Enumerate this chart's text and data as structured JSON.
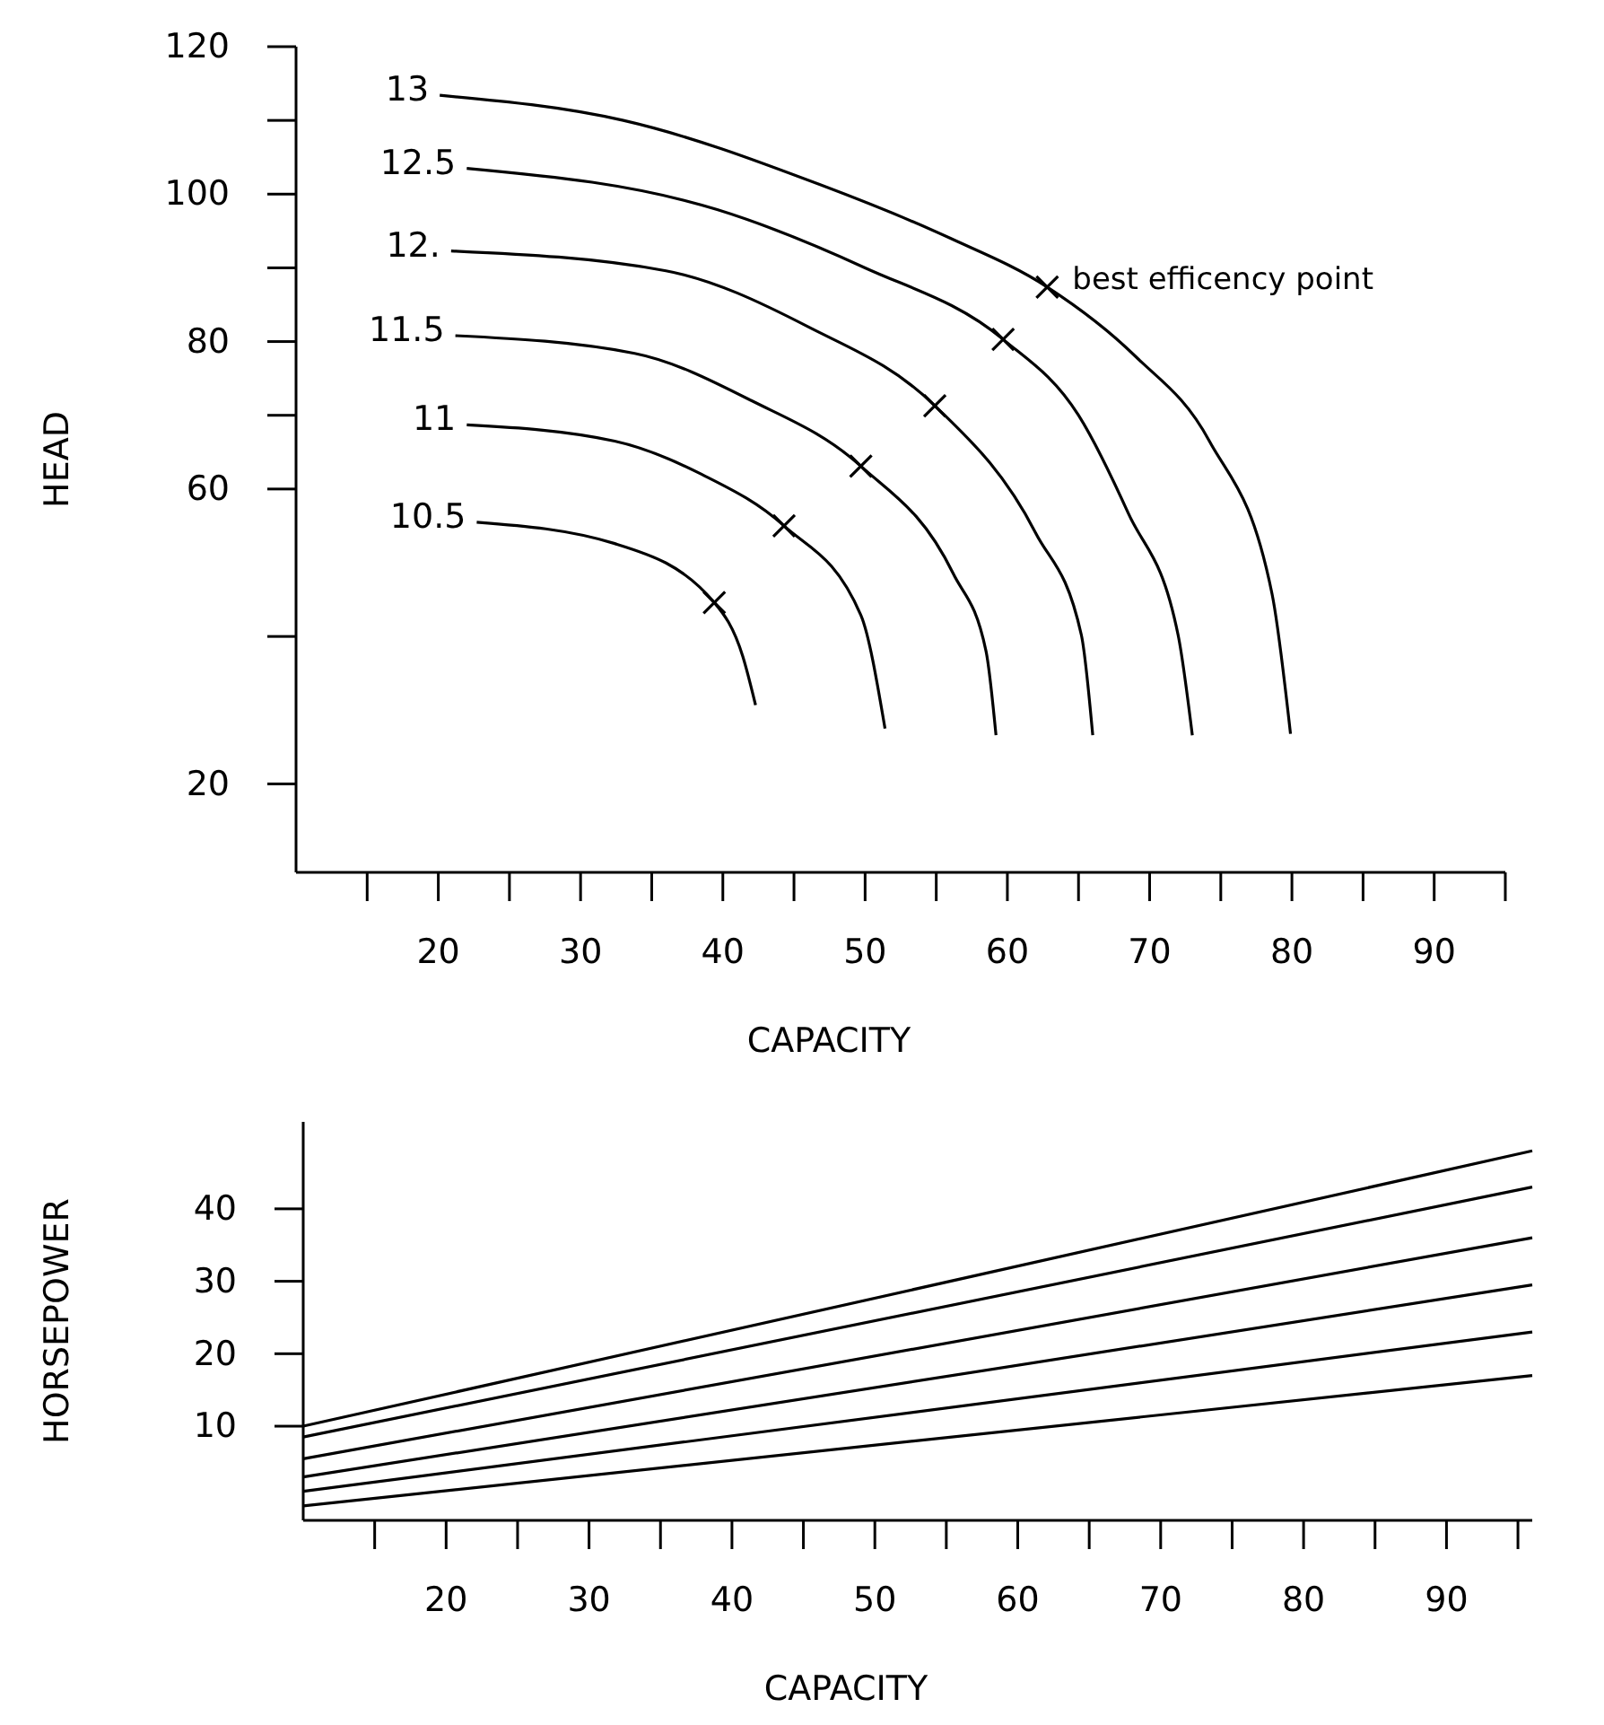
{
  "chart_data": [
    {
      "type": "line",
      "xlabel": "CAPACITY",
      "ylabel": "HEAD",
      "xlim": [
        10,
        95
      ],
      "ylim": [
        8,
        120
      ],
      "xticks": [
        {
          "value": 15,
          "label": null
        },
        20,
        {
          "value": 25,
          "label": null
        },
        30,
        {
          "value": 35,
          "label": null
        },
        40,
        {
          "value": 45,
          "label": null
        },
        50,
        {
          "value": 55,
          "label": null
        },
        60,
        {
          "value": 65,
          "label": null
        },
        70,
        {
          "value": 75,
          "label": null
        },
        80,
        {
          "value": 85,
          "label": null
        },
        90,
        {
          "value": 95,
          "label": null
        }
      ],
      "yticks": [
        120,
        {
          "value": 110,
          "label": null
        },
        100,
        {
          "value": 90,
          "label": null
        },
        80,
        {
          "value": 70,
          "label": null
        },
        60,
        {
          "value": 40,
          "label": null
        },
        20
      ],
      "grid": false,
      "line_style": "solid",
      "marker": "none",
      "series": [
        {
          "name": "13",
          "color": "#000000",
          "x": [
            20.1,
            33,
            46.8,
            56,
            62.8,
            69,
            74.2,
            78.6,
            79.9
          ],
          "values": [
            113.4,
            110,
            101.3,
            94,
            87.4,
            78,
            66.5,
            45.8,
            26.8
          ]
        },
        {
          "name": "12.5",
          "color": "#000000",
          "x": [
            22,
            39.6,
            50,
            59.7,
            65,
            68.5,
            72,
            73
          ],
          "values": [
            103.5,
            97.9,
            90,
            80.3,
            70,
            56.7,
            40.2,
            26.6
          ]
        },
        {
          "name": "12.",
          "color": "#000000",
          "x": [
            20.9,
            36,
            46,
            54.9,
            62,
            65.2,
            66
          ],
          "values": [
            92.3,
            89.6,
            82,
            71.3,
            54,
            40.2,
            26.6
          ]
        },
        {
          "name": "11.5",
          "color": "#000000",
          "x": [
            21.2,
            33.8,
            42,
            49.7,
            56.2,
            58.5,
            59.2
          ],
          "values": [
            80.8,
            78.4,
            72,
            63.1,
            48.5,
            38,
            26.6
          ]
        },
        {
          "name": "11",
          "color": "#000000",
          "x": [
            22,
            32.4,
            38.5,
            44.3,
            49.7,
            51.4
          ],
          "values": [
            68.7,
            66.5,
            62,
            55,
            42.9,
            27.5
          ]
        },
        {
          "name": "10.5",
          "color": "#000000",
          "x": [
            22.7,
            32.4,
            39.4,
            41.4,
            42.3
          ],
          "values": [
            55.5,
            52.6,
            44.6,
            37.3,
            30.7
          ]
        },
        {
          "type": "scatter",
          "marker": "cross",
          "color": "#000000",
          "x": [
            39.4,
            44.3,
            49.7,
            54.9,
            59.7,
            62.8
          ],
          "values": [
            44.6,
            55,
            63.1,
            71.3,
            80.3,
            87.4
          ]
        }
      ],
      "annotations": [
        {
          "text": "best efficency point",
          "x": 62.8,
          "y": 87.4
        }
      ]
    },
    {
      "type": "line",
      "xlabel": "CAPACITY",
      "ylabel": "HORSEPOWER",
      "xlim": [
        10,
        96
      ],
      "ylim": [
        -3,
        52
      ],
      "xticks": [
        {
          "value": 15,
          "label": null
        },
        20,
        {
          "value": 25,
          "label": null
        },
        30,
        {
          "value": 35,
          "label": null
        },
        40,
        {
          "value": 45,
          "label": null
        },
        50,
        {
          "value": 55,
          "label": null
        },
        60,
        {
          "value": 65,
          "label": null
        },
        70,
        {
          "value": 75,
          "label": null
        },
        80,
        {
          "value": 85,
          "label": null
        },
        90,
        {
          "value": 95,
          "label": null
        }
      ],
      "yticks": [
        10,
        20,
        30,
        40
      ],
      "grid": false,
      "line_style": "solid",
      "marker": "none",
      "series": [
        {
          "color": "#000000",
          "x": [
            10,
            96
          ],
          "values": [
            10,
            48
          ]
        },
        {
          "color": "#000000",
          "x": [
            10,
            96
          ],
          "values": [
            8.5,
            43
          ]
        },
        {
          "color": "#000000",
          "x": [
            10,
            96
          ],
          "values": [
            5.5,
            36
          ]
        },
        {
          "color": "#000000",
          "x": [
            10,
            96
          ],
          "values": [
            3,
            29.5
          ]
        },
        {
          "color": "#000000",
          "x": [
            10,
            96
          ],
          "values": [
            1,
            23
          ]
        },
        {
          "color": "#000000",
          "x": [
            10,
            96
          ],
          "values": [
            -1,
            17
          ]
        }
      ]
    }
  ]
}
